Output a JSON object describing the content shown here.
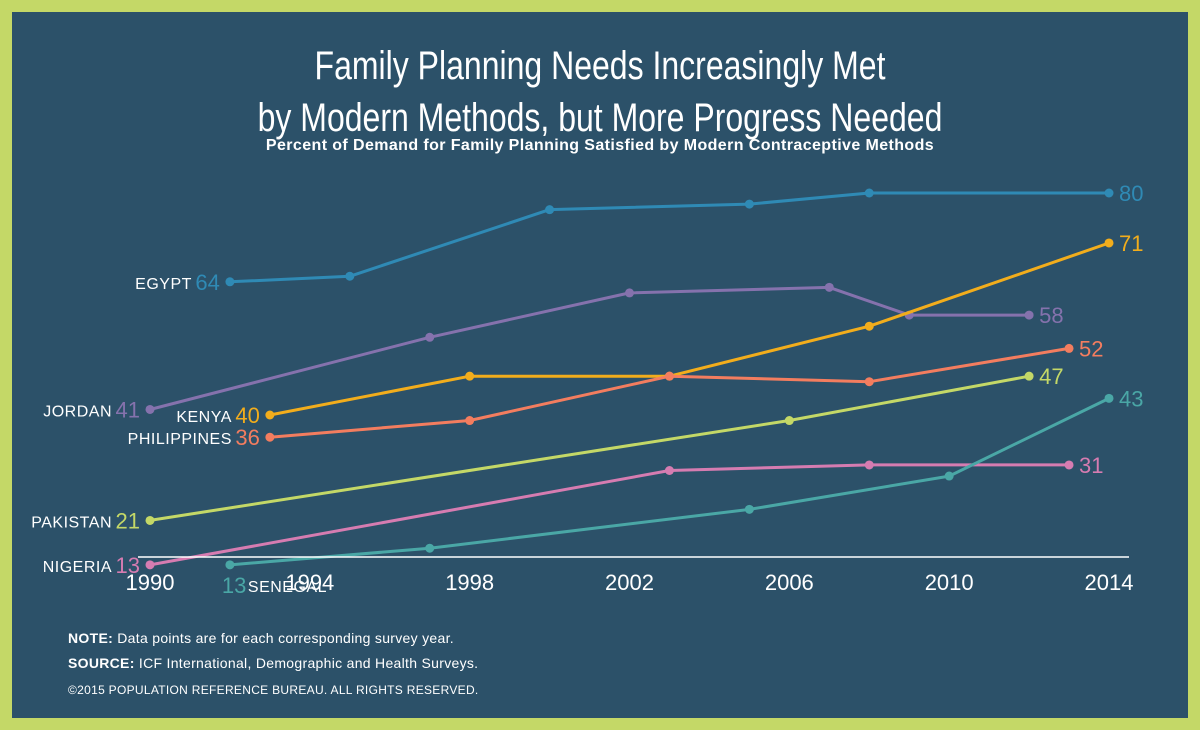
{
  "header": {
    "title_line1": "Family Planning Needs Increasingly Met",
    "title_line2": "by Modern Methods, but More Progress Needed",
    "subtitle": "Percent of Demand for Family Planning Satisfied by Modern Contraceptive Methods"
  },
  "footer": {
    "note_label": "NOTE:",
    "note_text": "Data points are for each corresponding survey year.",
    "source_label": "SOURCE:",
    "source_text": "ICF International, Demographic and Health Surveys.",
    "copyright": "©2015 POPULATION REFERENCE BUREAU. ALL RIGHTS RESERVED."
  },
  "colors": {
    "background": "#2c5169",
    "border": "#c4d867",
    "axis": "#ffffff"
  },
  "chart_data": {
    "type": "line",
    "title": "Family Planning Needs Increasingly Met by Modern Methods, but More Progress Needed",
    "subtitle": "Percent of Demand for Family Planning Satisfied by Modern Contraceptive Methods",
    "xlabel": "",
    "ylabel": "",
    "x_ticks": [
      1990,
      1994,
      1998,
      2002,
      2006,
      2010,
      2014
    ],
    "xlim": [
      1990,
      2014
    ],
    "ylim": [
      0,
      100
    ],
    "grid": false,
    "legend": "none",
    "series": [
      {
        "name": "EGYPT",
        "color": "#2f8ab5",
        "label_side": "start",
        "points": [
          [
            1992,
            64
          ],
          [
            1995,
            65
          ],
          [
            2000,
            77
          ],
          [
            2005,
            78
          ],
          [
            2008,
            80
          ],
          [
            2014,
            80
          ]
        ],
        "start_label": "64",
        "end_label": "80"
      },
      {
        "name": "JORDAN",
        "color": "#8572ad",
        "label_side": "start",
        "points": [
          [
            1990,
            41
          ],
          [
            1997,
            54
          ],
          [
            2002,
            62
          ],
          [
            2007,
            63
          ],
          [
            2009,
            58
          ],
          [
            2012,
            58
          ]
        ],
        "start_label": "41",
        "end_label": "58"
      },
      {
        "name": "KENYA",
        "color": "#f2ad1c",
        "label_side": "start",
        "points": [
          [
            1993,
            40
          ],
          [
            1998,
            47
          ],
          [
            2003,
            47
          ],
          [
            2008,
            56
          ],
          [
            2014,
            71
          ]
        ],
        "start_label": "40",
        "end_label": "71"
      },
      {
        "name": "PHILIPPINES",
        "color": "#f37d5f",
        "label_side": "start",
        "points": [
          [
            1993,
            36
          ],
          [
            1998,
            39
          ],
          [
            2003,
            47
          ],
          [
            2008,
            46
          ],
          [
            2013,
            52
          ]
        ],
        "start_label": "36",
        "end_label": "52"
      },
      {
        "name": "PAKISTAN",
        "color": "#c4d867",
        "label_side": "start",
        "points": [
          [
            1990,
            21
          ],
          [
            2006,
            39
          ],
          [
            2012,
            47
          ]
        ],
        "start_label": "21",
        "end_label": "47"
      },
      {
        "name": "NIGERIA",
        "color": "#d67cb1",
        "label_side": "start",
        "points": [
          [
            1990,
            13
          ],
          [
            2003,
            30
          ],
          [
            2008,
            31
          ],
          [
            2013,
            31
          ]
        ],
        "start_label": "13",
        "end_label": "31"
      },
      {
        "name": "SENEGAL",
        "color": "#4aa7a6",
        "label_side": "below",
        "points": [
          [
            1992,
            13
          ],
          [
            1997,
            16
          ],
          [
            2005,
            23
          ],
          [
            2010,
            29
          ],
          [
            2014,
            43
          ]
        ],
        "start_label": "13",
        "end_label": "43"
      }
    ]
  }
}
